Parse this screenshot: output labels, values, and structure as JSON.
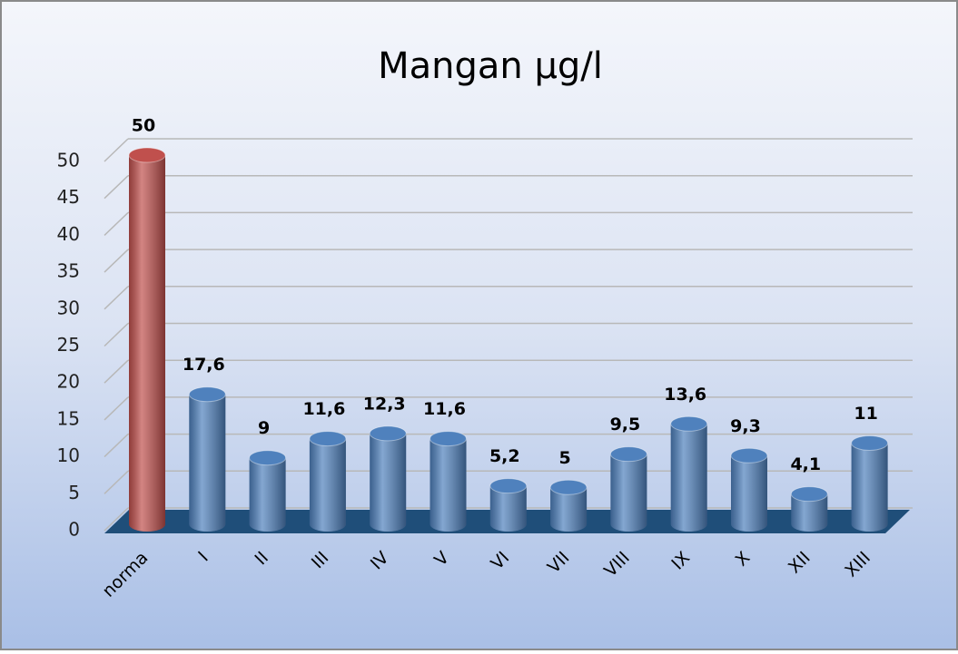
{
  "chart_data": {
    "type": "bar",
    "title": "Mangan µg/l",
    "categories": [
      "norma",
      "I",
      "II",
      "III",
      "IV",
      "V",
      "VI",
      "VII",
      "VIII",
      "IX",
      "X",
      "XII",
      "XIII"
    ],
    "values": [
      50,
      17.6,
      9,
      11.6,
      12.3,
      11.6,
      5.2,
      5,
      9.5,
      13.6,
      9.3,
      4.1,
      11
    ],
    "value_labels": [
      "50",
      "17,6",
      "9",
      "11,6",
      "12,3",
      "11,6",
      "5,2",
      "5",
      "9,5",
      "13,6",
      "9,3",
      "4,1",
      "11"
    ],
    "colors": [
      "#c0504d",
      "#4f81bd",
      "#4f81bd",
      "#4f81bd",
      "#4f81bd",
      "#4f81bd",
      "#4f81bd",
      "#4f81bd",
      "#4f81bd",
      "#4f81bd",
      "#4f81bd",
      "#4f81bd",
      "#4f81bd"
    ],
    "ylim": [
      0,
      50
    ],
    "yticks": [
      0,
      5,
      10,
      15,
      20,
      25,
      30,
      35,
      40,
      45,
      50
    ],
    "grid": true
  }
}
